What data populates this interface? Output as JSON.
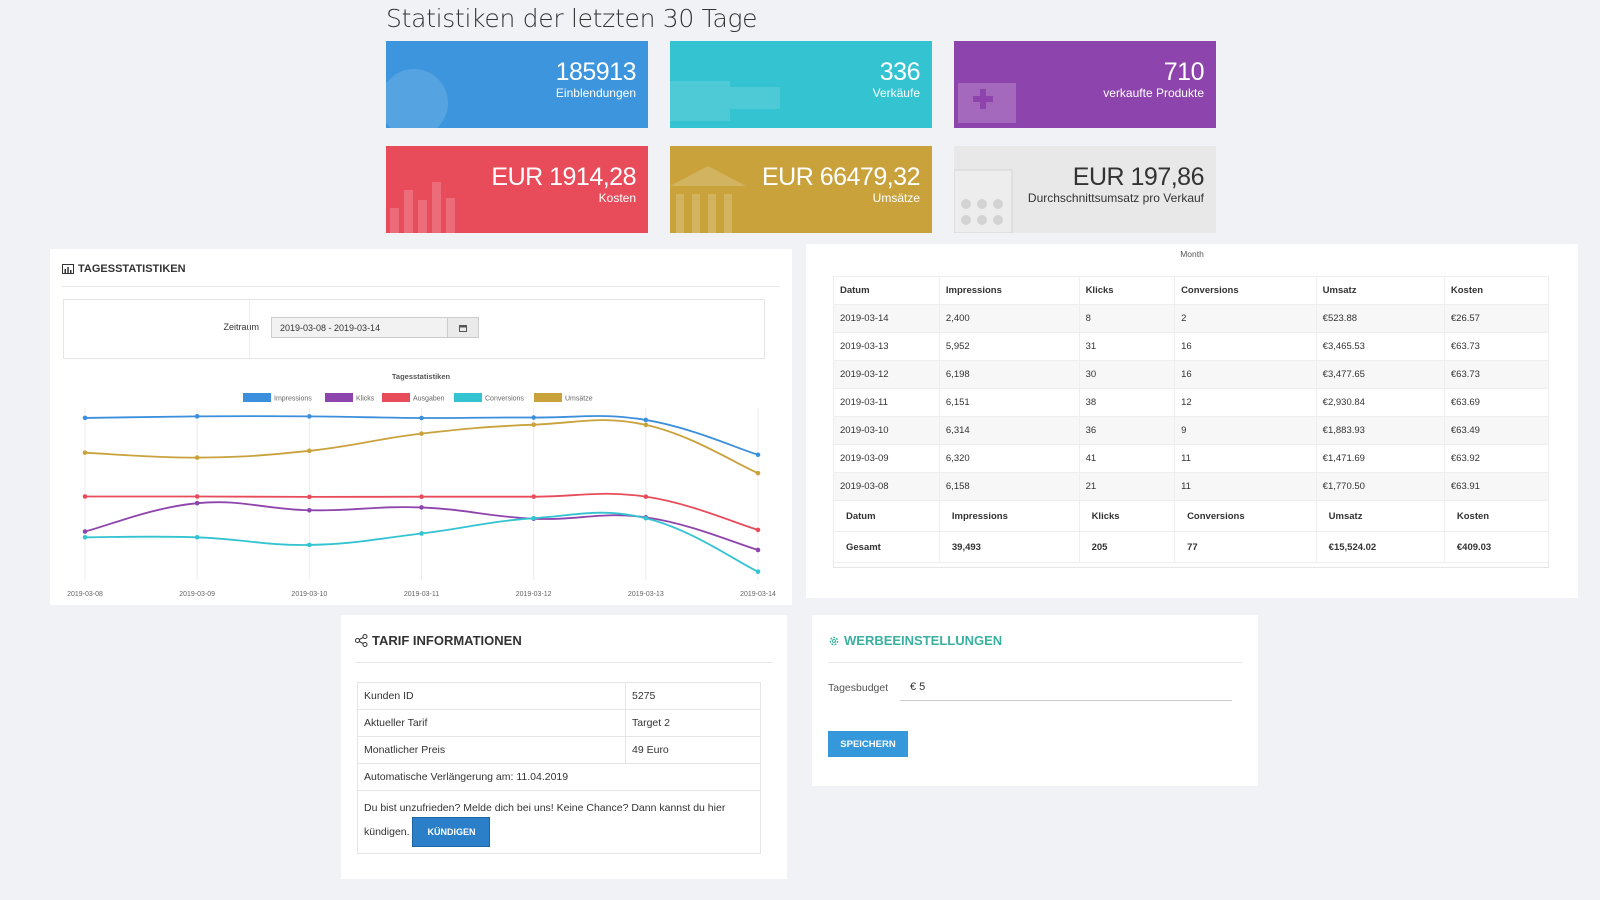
{
  "page": {
    "title": "Statistiken der letzten 30 Tage"
  },
  "tiles": [
    {
      "value": "185913",
      "label": "Einblendungen",
      "color": "#3c95dd",
      "icon": "globe-icon"
    },
    {
      "value": "336",
      "label": "Verkäufe",
      "color": "#34c3d1",
      "icon": "cart-icon"
    },
    {
      "value": "710",
      "label": "verkaufte Produkte",
      "color": "#8e44ad",
      "icon": "medkit-icon"
    },
    {
      "value": "EUR 1914,28",
      "label": "Kosten",
      "color": "#e84c5b",
      "icon": "bar-chart-icon"
    },
    {
      "value": "EUR 66479,32",
      "label": "Umsätze",
      "color": "#c9a23c",
      "icon": "bank-icon"
    },
    {
      "value": "EUR 197,86",
      "label": "Durchschnittsumsatz pro Verkauf",
      "color": "#e8e8e8",
      "icon": "calculator-icon"
    }
  ],
  "daily": {
    "title": "Tagesstatistiken",
    "filter_label": "Zeitraum",
    "filter_value": "2019-03-08 - 2019-03-14",
    "chart_title": "Tagesstatistiken"
  },
  "chart_data": {
    "type": "line",
    "title": "Tagesstatistiken",
    "x": [
      "2019-03-08",
      "2019-03-09",
      "2019-03-10",
      "2019-03-11",
      "2019-03-12",
      "2019-03-13",
      "2019-03-14"
    ],
    "xlabel": "",
    "ylabel": "",
    "legend_position": "top",
    "grid": "vertical",
    "series": [
      {
        "name": "Impressions",
        "color": "#3c8fdc",
        "values": [
          6158,
          6320,
          6314,
          6151,
          6198,
          5952,
          2400
        ]
      },
      {
        "name": "Klicks",
        "color": "#8e44ad",
        "values": [
          21,
          41,
          36,
          38,
          30,
          31,
          8
        ]
      },
      {
        "name": "Ausgaben",
        "color": "#e84c5b",
        "values": [
          63.91,
          63.92,
          63.49,
          63.69,
          63.73,
          63.73,
          26.57
        ]
      },
      {
        "name": "Conversions",
        "color": "#34c3d1",
        "values": [
          11,
          11,
          9,
          12,
          16,
          16,
          2
        ]
      },
      {
        "name": "Umsätze",
        "color": "#c9a23c",
        "values": [
          1770.5,
          1471.69,
          1883.93,
          2930.84,
          3477.65,
          3465.53,
          523.88
        ]
      }
    ]
  },
  "table_panel": {
    "top_label": "Month",
    "headers": [
      "Datum",
      "Impressions",
      "Klicks",
      "Conversions",
      "Umsatz",
      "Kosten"
    ],
    "rows": [
      [
        "2019-03-14",
        "2,400",
        "8",
        "2",
        "€523.88",
        "€26.57"
      ],
      [
        "2019-03-13",
        "5,952",
        "31",
        "16",
        "€3,465.53",
        "€63.73"
      ],
      [
        "2019-03-12",
        "6,198",
        "30",
        "16",
        "€3,477.65",
        "€63.73"
      ],
      [
        "2019-03-11",
        "6,151",
        "38",
        "12",
        "€2,930.84",
        "€63.69"
      ],
      [
        "2019-03-10",
        "6,314",
        "36",
        "9",
        "€1,883.93",
        "€63.49"
      ],
      [
        "2019-03-09",
        "6,320",
        "41",
        "11",
        "€1,471.69",
        "€63.92"
      ],
      [
        "2019-03-08",
        "6,158",
        "21",
        "11",
        "€1,770.50",
        "€63.91"
      ]
    ],
    "footer_headers": [
      "Datum",
      "Impressions",
      "Klicks",
      "Conversions",
      "Umsatz",
      "Kosten"
    ],
    "totals": [
      "Gesamt",
      "39,493",
      "205",
      "77",
      "€15,524.02",
      "€409.03"
    ]
  },
  "tarif": {
    "title": "Tarif Informationen",
    "rows": [
      {
        "label": "Kunden ID",
        "value": "5275"
      },
      {
        "label": "Aktueller Tarif",
        "value": "Target 2"
      },
      {
        "label": "Monatlicher Preis",
        "value": "49 Euro"
      }
    ],
    "renewal": "Automatische Verlängerung am: 11.04.2019",
    "cancel_text": "Du bist unzufrieden? Melde dich bei uns! Keine Chance? Dann kannst du hier kündigen.",
    "cancel_button": "Kündigen"
  },
  "werbe": {
    "title": "Werbeeinstellungen",
    "accent": "#3ab0a0",
    "budget_label": "Tagesbudget",
    "budget_value": "€ 5",
    "save_button": "Speichern"
  }
}
